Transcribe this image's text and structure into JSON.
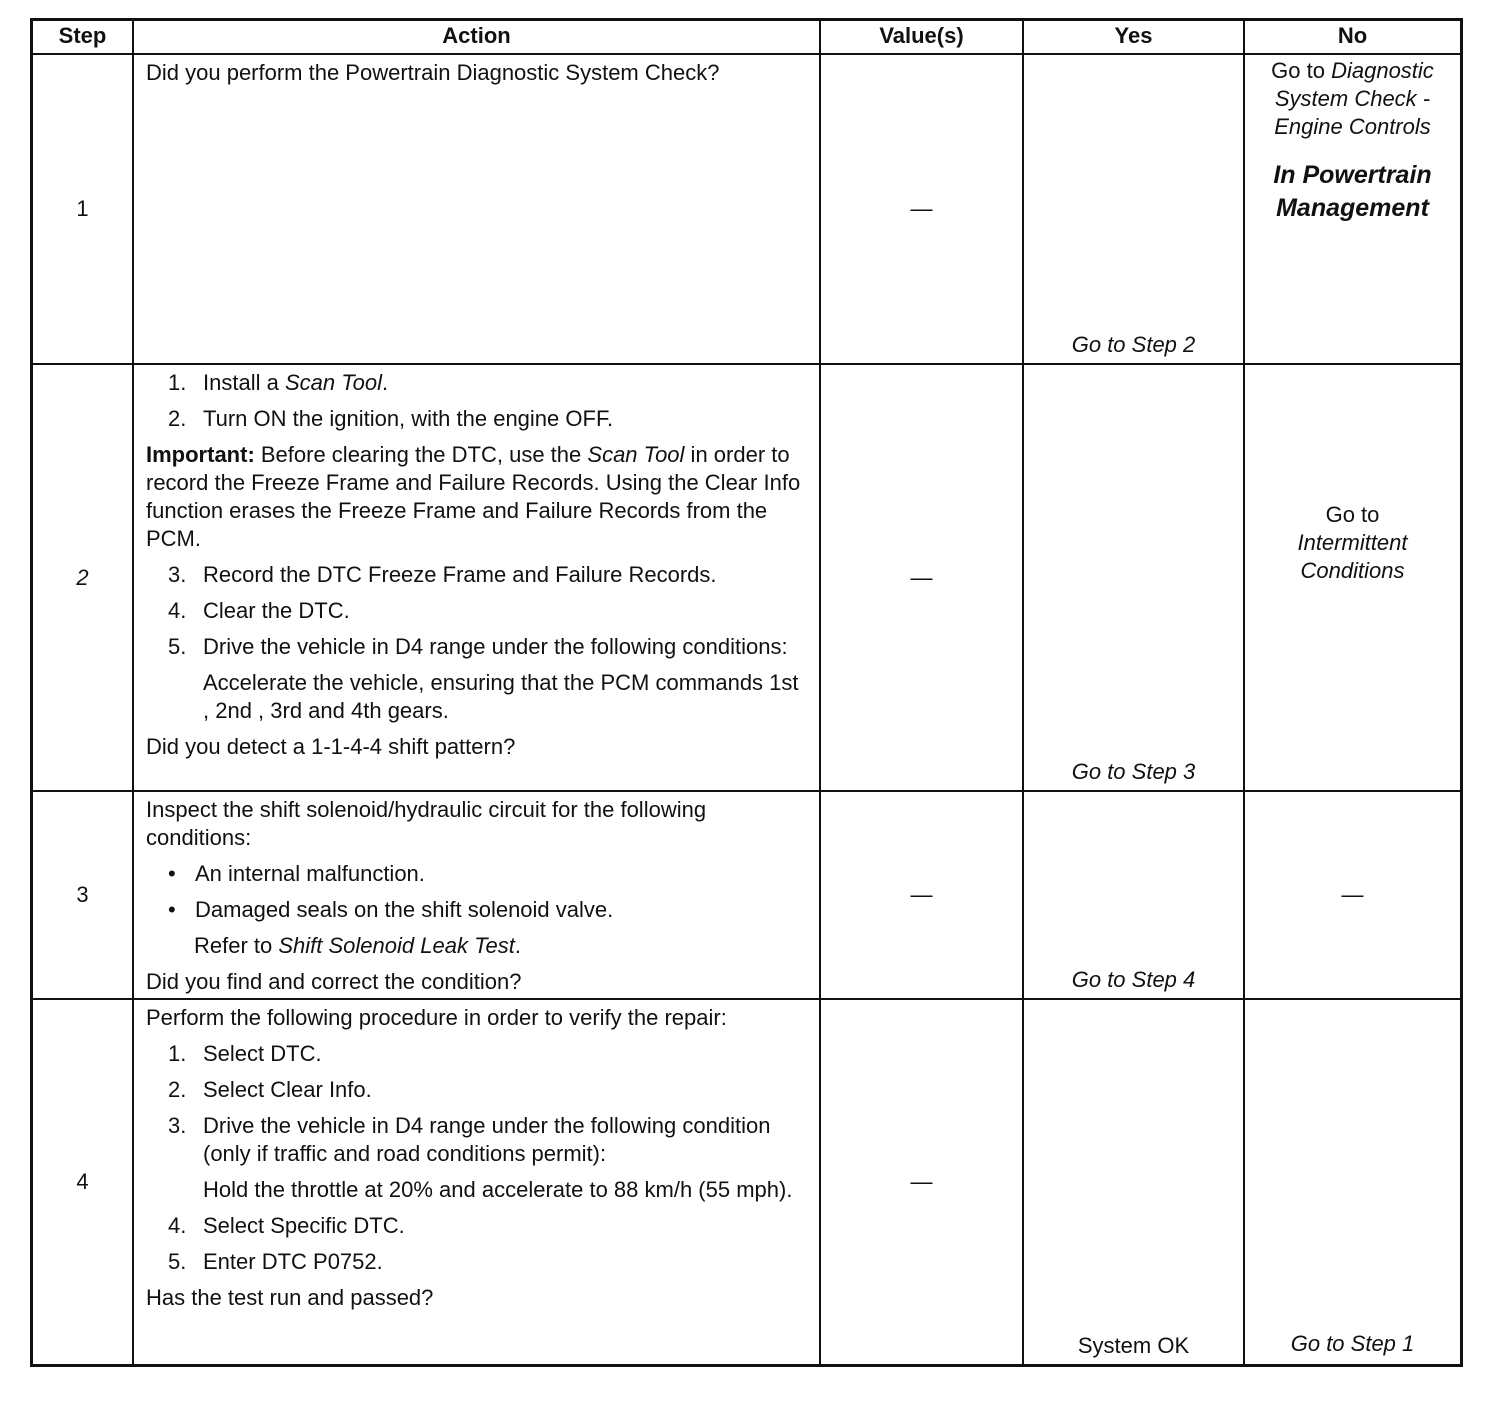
{
  "headers": [
    "Step",
    "Action",
    "Value(s)",
    "Yes",
    "No"
  ],
  "rows": [
    {
      "step": "1",
      "value": "—",
      "yes": "Go to Step 2",
      "yes_italic": true,
      "no": [
        {
          "t": "Go to "
        },
        {
          "t": "Diagnostic System Check - Engine Controls",
          "i": true
        }
      ],
      "no_extra": "In Powertrain Management",
      "no_align": "top",
      "action": [
        {
          "k": "p",
          "parts": [
            {
              "t": "Did you perform the Powertrain Diagnostic System Check?"
            }
          ]
        }
      ]
    },
    {
      "step": "2",
      "step_italic": true,
      "value": "—",
      "yes": "Go to Step 3",
      "yes_italic": true,
      "no": [
        {
          "t": "Go to "
        },
        {
          "t": "Intermittent Conditions",
          "i": true
        }
      ],
      "no_align": "middle",
      "action": [
        {
          "k": "num",
          "n": "1.",
          "parts": [
            {
              "t": "Install a "
            },
            {
              "t": "Scan Tool",
              "i": true
            },
            {
              "t": "."
            }
          ]
        },
        {
          "k": "num",
          "n": "2.",
          "parts": [
            {
              "t": "Turn ON the ignition, with the engine OFF."
            }
          ]
        },
        {
          "k": "p",
          "parts": [
            {
              "t": "Important:",
              "b": true
            },
            {
              "t": " Before clearing the DTC, use the "
            },
            {
              "t": "Scan Tool",
              "i": true
            },
            {
              "t": " in order to record the Freeze Frame and Failure Records. Using the Clear Info function erases the Freeze Frame and Failure Records from the PCM."
            }
          ]
        },
        {
          "k": "num",
          "n": "3.",
          "parts": [
            {
              "t": "Record the DTC Freeze Frame and Failure Records."
            }
          ]
        },
        {
          "k": "num",
          "n": "4.",
          "parts": [
            {
              "t": "Clear the DTC."
            }
          ]
        },
        {
          "k": "num",
          "n": "5.",
          "parts": [
            {
              "t": "Drive the vehicle in D4 range under the following conditions:"
            }
          ]
        },
        {
          "k": "ind",
          "parts": [
            {
              "t": "Accelerate the vehicle, ensuring that the PCM commands 1st , 2nd , 3rd and 4th  gears."
            }
          ]
        },
        {
          "k": "p",
          "parts": [
            {
              "t": "Did you detect a 1-1-4-4 shift pattern?"
            }
          ]
        }
      ]
    },
    {
      "step": "3",
      "value": "—",
      "yes": "Go to Step 4",
      "yes_italic": true,
      "no": [
        {
          "t": "—"
        }
      ],
      "no_align": "middle",
      "action": [
        {
          "k": "p",
          "parts": [
            {
              "t": "Inspect the shift solenoid/hydraulic circuit for the following conditions:"
            }
          ]
        },
        {
          "k": "bul",
          "n": "•",
          "parts": [
            {
              "t": "An internal malfunction."
            }
          ]
        },
        {
          "k": "bul",
          "n": "•",
          "parts": [
            {
              "t": "Damaged seals on the shift solenoid valve."
            }
          ]
        },
        {
          "k": "ind2",
          "parts": [
            {
              "t": "Refer to "
            },
            {
              "t": "Shift Solenoid Leak Test",
              "i": true
            },
            {
              "t": "."
            }
          ]
        },
        {
          "k": "p",
          "parts": [
            {
              "t": "Did you find and correct the condition?"
            }
          ]
        }
      ]
    },
    {
      "step": "4",
      "value": "—",
      "yes": "System OK",
      "yes_italic": false,
      "no": [
        {
          "t": "Go to Step 1",
          "i": true
        }
      ],
      "no_align": "bottom",
      "action": [
        {
          "k": "p",
          "parts": [
            {
              "t": "Perform the following procedure in order to verify the repair:"
            }
          ]
        },
        {
          "k": "num",
          "n": "1.",
          "parts": [
            {
              "t": "Select DTC."
            }
          ]
        },
        {
          "k": "num",
          "n": "2.",
          "parts": [
            {
              "t": "Select Clear Info."
            }
          ]
        },
        {
          "k": "num",
          "n": "3.",
          "parts": [
            {
              "t": "Drive the vehicle in D4 range under the following condition (only if traffic and road conditions permit):"
            }
          ]
        },
        {
          "k": "ind",
          "parts": [
            {
              "t": "Hold the throttle at 20% and accelerate to 88 km/h (55 mph)."
            }
          ]
        },
        {
          "k": "num",
          "n": "4.",
          "parts": [
            {
              "t": "Select Specific DTC."
            }
          ]
        },
        {
          "k": "num",
          "n": "5.",
          "parts": [
            {
              "t": "Enter DTC P0752."
            }
          ]
        },
        {
          "k": "p",
          "parts": [
            {
              "t": "Has the test run and passed?"
            }
          ]
        }
      ]
    }
  ]
}
